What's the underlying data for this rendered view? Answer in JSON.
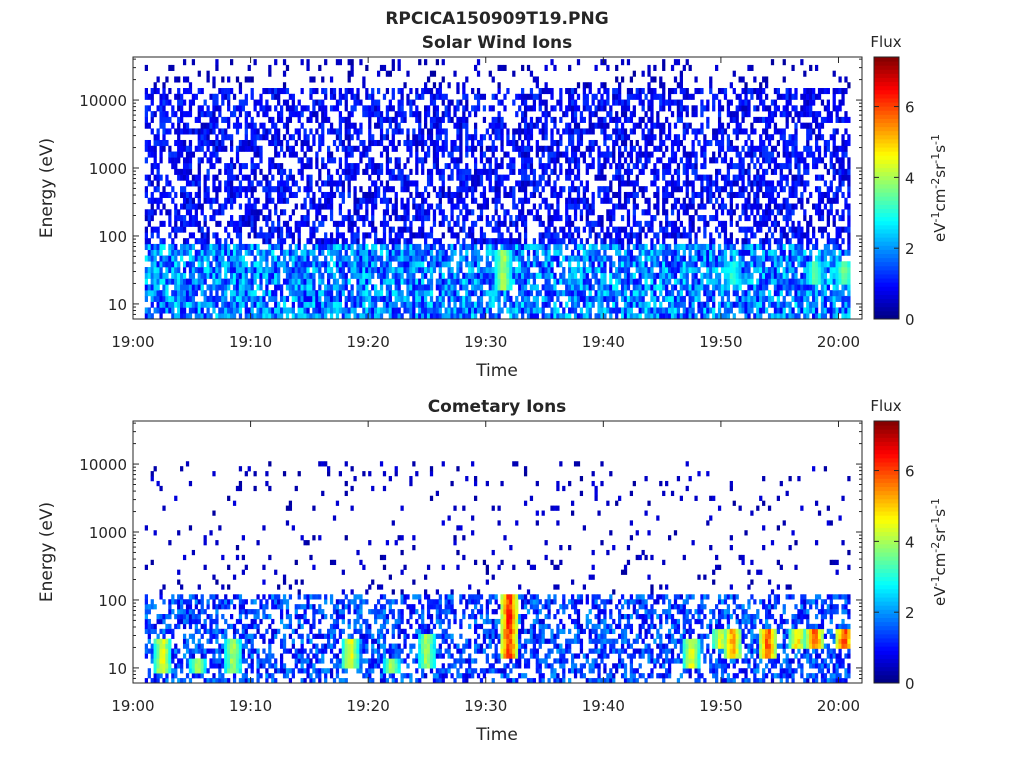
{
  "figure": {
    "title": "RPCICA150909T19.PNG"
  },
  "chart_data": [
    {
      "type": "heatmap",
      "title": "Solar Wind Ions",
      "xlabel": "Time",
      "ylabel": "Energy (eV)",
      "y_scale": "log",
      "ylim": [
        6,
        43000
      ],
      "xlim": [
        "19:00:00",
        "20:02:00"
      ],
      "x_ticks": [
        "19:00",
        "19:10",
        "19:20",
        "19:30",
        "19:40",
        "19:50",
        "20:00"
      ],
      "y_ticks": [
        10,
        100,
        1000,
        10000
      ],
      "y_tick_labels": [
        "10",
        "100",
        "1000",
        "10000"
      ],
      "colorbar": {
        "label": "Flux",
        "units": "eV-1cm-2sr-1s-1",
        "range": [
          0,
          7.4
        ],
        "ticks": [
          0,
          2,
          4,
          6
        ],
        "colormap": "jet"
      },
      "background_intensity": [
        {
          "energy_range_ev": [
            6,
            80
          ],
          "typical_flux": 2.0
        },
        {
          "energy_range_ev": [
            80,
            15000
          ],
          "typical_flux": 1.0
        },
        {
          "energy_range_ev": [
            15000,
            43000
          ],
          "typical_flux": 0.5
        }
      ],
      "features": [
        {
          "time": "19:31:30",
          "energy_ev": [
            15,
            60
          ],
          "peak_flux": 4.5
        },
        {
          "time": "19:51:00",
          "energy_ev": [
            20,
            40
          ],
          "peak_flux": 3.5
        },
        {
          "time": "19:58:00",
          "energy_ev": [
            20,
            40
          ],
          "peak_flux": 3.8
        },
        {
          "time": "20:00:30",
          "energy_ev": [
            20,
            40
          ],
          "peak_flux": 4.2
        }
      ]
    },
    {
      "type": "heatmap",
      "title": "Cometary Ions",
      "xlabel": "Time",
      "ylabel": "Energy (eV)",
      "y_scale": "log",
      "ylim": [
        6,
        43000
      ],
      "xlim": [
        "19:00:00",
        "20:02:00"
      ],
      "x_ticks": [
        "19:00",
        "19:10",
        "19:20",
        "19:30",
        "19:40",
        "19:50",
        "20:00"
      ],
      "y_ticks": [
        10,
        100,
        1000,
        10000
      ],
      "y_tick_labels": [
        "10",
        "100",
        "1000",
        "10000"
      ],
      "colorbar": {
        "label": "Flux",
        "units": "eV-1cm-2sr-1s-1",
        "range": [
          0,
          7.4
        ],
        "ticks": [
          0,
          2,
          4,
          6
        ],
        "colormap": "jet"
      },
      "background_intensity": [
        {
          "energy_range_ev": [
            6,
            120
          ],
          "typical_flux": 1.5
        },
        {
          "energy_range_ev": [
            120,
            11000
          ],
          "typical_flux": 0.5
        }
      ],
      "features": [
        {
          "time": "19:02:30",
          "energy_ev": [
            8,
            25
          ],
          "peak_flux": 5.0
        },
        {
          "time": "19:05:30",
          "energy_ev": [
            8,
            15
          ],
          "peak_flux": 4.5
        },
        {
          "time": "19:08:30",
          "energy_ev": [
            8,
            25
          ],
          "peak_flux": 4.5
        },
        {
          "time": "19:18:30",
          "energy_ev": [
            10,
            25
          ],
          "peak_flux": 5.0
        },
        {
          "time": "19:22:00",
          "energy_ev": [
            8,
            15
          ],
          "peak_flux": 4.5
        },
        {
          "time": "19:25:00",
          "energy_ev": [
            10,
            30
          ],
          "peak_flux": 4.5
        },
        {
          "time": "19:32:00",
          "energy_ev": [
            15,
            120
          ],
          "peak_flux": 7.0
        },
        {
          "time": "19:47:30",
          "energy_ev": [
            10,
            25
          ],
          "peak_flux": 5.0
        },
        {
          "time": "19:50:00",
          "energy_ev": [
            20,
            40
          ],
          "peak_flux": 5.0
        },
        {
          "time": "19:51:00",
          "energy_ev": [
            15,
            40
          ],
          "peak_flux": 6.0
        },
        {
          "time": "19:54:00",
          "energy_ev": [
            15,
            40
          ],
          "peak_flux": 6.5
        },
        {
          "time": "19:56:30",
          "energy_ev": [
            20,
            40
          ],
          "peak_flux": 5.5
        },
        {
          "time": "19:58:00",
          "energy_ev": [
            20,
            40
          ],
          "peak_flux": 6.5
        },
        {
          "time": "20:00:30",
          "energy_ev": [
            20,
            40
          ],
          "peak_flux": 6.8
        }
      ]
    }
  ]
}
